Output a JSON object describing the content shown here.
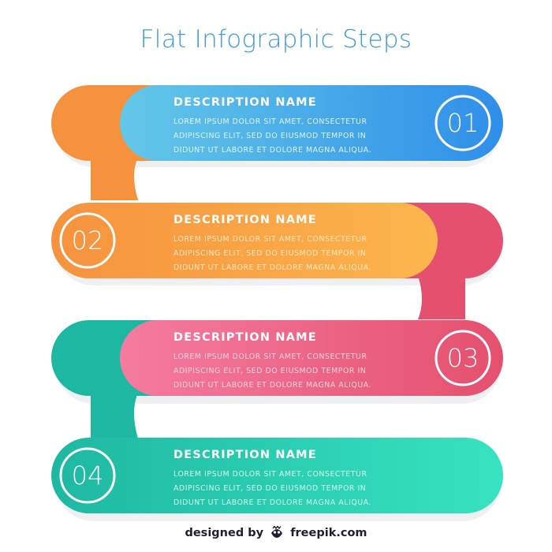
{
  "title": "Flat Infographic Steps",
  "colors": {
    "title": "#3b9ad9",
    "blue_light": "#63c8e8",
    "blue_dark": "#2f8ee9",
    "orange": "#f6923e",
    "orange_light": "#fcb64d",
    "pink": "#e5506e",
    "pink_light": "#f57ba0",
    "teal_dark": "#1eb8a2",
    "teal_light": "#37e3c0"
  },
  "steps": [
    {
      "number": "01",
      "heading": "DESCRIPTION NAME",
      "lines": [
        "LOREM IPSUM DOLOR SIT AMET, CONSECTETUR",
        "ADIPISCING ELIT, SED DO EIUSMOD TEMPOR IN",
        "DIDUNT UT LABORE ET DOLORE MAGNA ALIQUA."
      ],
      "heading_color": "#ffffff",
      "text_color": "#dff3fb"
    },
    {
      "number": "02",
      "heading": "DESCRIPTION NAME",
      "lines": [
        "LOREM IPSUM DOLOR SIT AMET, CONSECTETUR",
        "ADIPISCING ELIT, SED DO EIUSMOD TEMPOR IN",
        "DIDUNT UT LABORE ET DOLORE MAGNA ALIQUA."
      ],
      "heading_color": "#ffffff",
      "text_color": "#fde6c2"
    },
    {
      "number": "03",
      "heading": "DESCRIPTION NAME",
      "lines": [
        "LOREM IPSUM DOLOR SIT AMET, CONSECTETUR",
        "ADIPISCING ELIT, SED DO EIUSMOD TEMPOR IN",
        "DIDUNT UT LABORE ET DOLORE MAGNA ALIQUA."
      ],
      "heading_color": "#ffffff",
      "text_color": "#fbd3dd"
    },
    {
      "number": "04",
      "heading": "DESCRIPTION NAME",
      "lines": [
        "LOREM IPSUM DOLOR SIT AMET, CONSECTETUR",
        "ADIPISCING ELIT, SED DO EIUSMOD TEMPOR IN",
        "DIDUNT UT LABORE ET DOLORE MAGNA ALIQUA."
      ],
      "heading_color": "#ffffff",
      "text_color": "#d2f7ee"
    }
  ],
  "credit": {
    "prefix": "designed by",
    "brand": "freepik.com",
    "icon": "freepik-logo-icon"
  }
}
